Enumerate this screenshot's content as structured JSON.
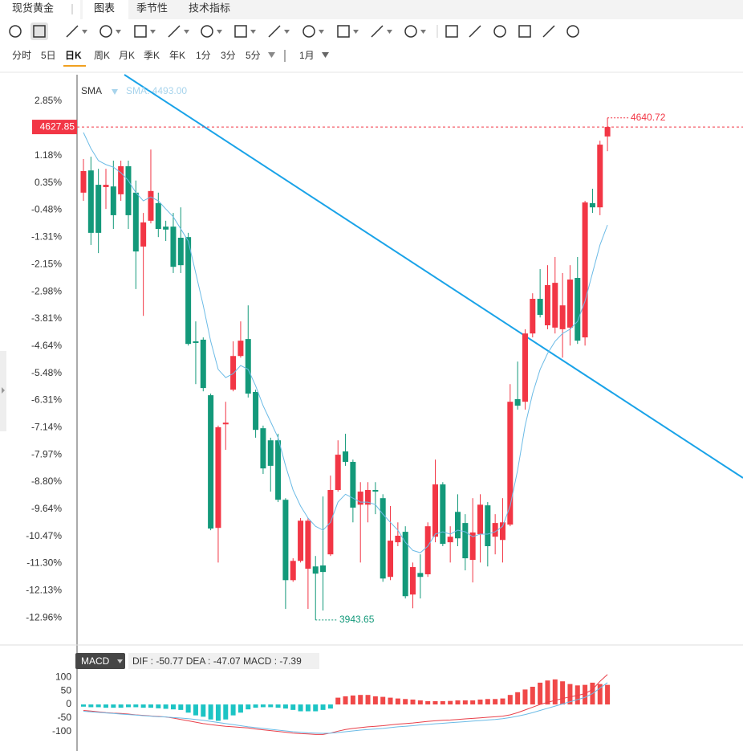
{
  "tabs": [
    "现货黄金",
    "图表",
    "季节性",
    "技术指标"
  ],
  "periods": [
    "分时",
    "5日",
    "日K",
    "周K",
    "月K",
    "季K",
    "年K",
    "1分",
    "3分",
    "5分",
    "1月"
  ],
  "chart_data": [
    {
      "type": "candlestick",
      "sma_label": "SMA: 4493.00",
      "ylim": [
        -13.72,
        3.66
      ],
      "yticks": [
        {
          "value": 2.85,
          "label": "2.85%"
        },
        {
          "value": 1.18,
          "label": "1.18%"
        },
        {
          "value": 0.35,
          "label": "0.35%"
        },
        {
          "value": -0.48,
          "label": "-0.48%"
        },
        {
          "value": -1.31,
          "label": "-1.31%"
        },
        {
          "value": -2.15,
          "label": "-2.15%"
        },
        {
          "value": -2.98,
          "label": "-2.98%"
        },
        {
          "value": -3.81,
          "label": "-3.81%"
        },
        {
          "value": -4.64,
          "label": "-4.64%"
        },
        {
          "value": -5.48,
          "label": "-5.48%"
        },
        {
          "value": -6.31,
          "label": "-6.31%"
        },
        {
          "value": -7.14,
          "label": "-7.14%"
        },
        {
          "value": -7.97,
          "label": "-7.97%"
        },
        {
          "value": -8.8,
          "label": "-8.80%"
        },
        {
          "value": -9.64,
          "label": "-9.64%"
        },
        {
          "value": -10.47,
          "label": "-10.47%"
        },
        {
          "value": -11.3,
          "label": "-11.30%"
        },
        {
          "value": -12.13,
          "label": "-12.13%"
        },
        {
          "value": -12.96,
          "label": "-12.96%"
        }
      ],
      "price_marker": {
        "value": 2.06,
        "label": "4627.85"
      },
      "high_label": "4640.72",
      "low_label": "3943.65",
      "up_color": "#f23645",
      "down_color": "#13997a",
      "open": [
        0.05,
        0.73,
        0.29,
        0.22,
        0.24,
        0.0,
        0.86,
        0.05,
        -1.6,
        -0.81,
        -0.27,
        -0.99,
        -0.99,
        -1.33,
        -1.31,
        -4.5,
        -4.45,
        -6.15,
        -10.21,
        -7.04,
        -5.98,
        -4.95,
        -4.43,
        -6.05,
        -7.16,
        -7.53,
        -7.53,
        -9.35,
        -11.81,
        -11.22,
        -11.46,
        -11.39,
        -11.36,
        -11.02,
        -9.05,
        -7.87,
        -8.19,
        -9.5,
        -9.5,
        -9.05,
        -9.3,
        -11.71,
        -10.65,
        -10.33,
        -12.25,
        -11.59,
        -11.63,
        -10.48,
        -8.88,
        -10.65,
        -9.72,
        -10.06,
        -11.19,
        -10.4,
        -9.52,
        -10.48,
        -10.58,
        -10.11,
        -6.27,
        -6.35,
        -4.26,
        -3.2,
        -4.01,
        -4.08,
        -4.13,
        -4.08,
        -2.56,
        -4.38,
        -0.27,
        -0.4,
        1.77
      ],
      "high": [
        1.08,
        1.15,
        0.78,
        0.78,
        1.03,
        1.03,
        1.03,
        0.42,
        -0.57,
        1.37,
        0.05,
        -0.81,
        -0.57,
        -0.4,
        -1.18,
        -3.89,
        -4.38,
        -6.1,
        -7.08,
        -6.35,
        -4.5,
        -3.89,
        -3.4,
        -5.98,
        -7.08,
        -7.45,
        -7.33,
        -9.3,
        -11.14,
        -9.91,
        -9.91,
        -11.07,
        -9.25,
        -8.61,
        -7.53,
        -7.33,
        -8.12,
        -8.81,
        -8.81,
        -8.81,
        -9.18,
        -9.54,
        -10.04,
        -10.16,
        -11.27,
        -11.02,
        -10.04,
        -8.12,
        -8.81,
        -10.16,
        -9.18,
        -9.79,
        -9.3,
        -9.18,
        -9.42,
        -9.79,
        -9.3,
        -5.81,
        -5.12,
        -4.13,
        -3.03,
        -2.29,
        -2.17,
        -1.92,
        -2.41,
        -2.17,
        -1.92,
        -0.2,
        0.17,
        1.64,
        2.34
      ],
      "low": [
        -0.2,
        -1.55,
        -1.8,
        -0.45,
        -1.06,
        -0.2,
        -1.06,
        -2.9,
        -3.72,
        -0.89,
        -1.31,
        -1.43,
        -2.41,
        -2.41,
        -4.63,
        -5.81,
        -6.03,
        -10.28,
        -11.27,
        -7.82,
        -6.03,
        -5.0,
        -6.22,
        -7.45,
        -8.56,
        -9.1,
        -9.42,
        -12.69,
        -11.86,
        -11.27,
        -12.69,
        -13.03,
        -12.74,
        -11.07,
        -9.1,
        -8.31,
        -10.04,
        -11.27,
        -10.04,
        -9.79,
        -11.86,
        -11.81,
        -10.77,
        -12.37,
        -12.67,
        -12.37,
        -11.71,
        -10.65,
        -10.77,
        -11.27,
        -10.77,
        -11.51,
        -11.88,
        -11.27,
        -11.39,
        -11.02,
        -11.27,
        -10.16,
        -6.59,
        -6.59,
        -4.38,
        -3.77,
        -4.13,
        -4.26,
        -5.0,
        -4.63,
        -4.58,
        -4.63,
        -0.57,
        -0.64,
        1.32
      ],
      "close": [
        0.71,
        -1.18,
        -1.18,
        0.29,
        -0.64,
        0.86,
        -0.64,
        -1.75,
        -0.86,
        0.1,
        -1.06,
        -1.08,
        -2.22,
        -2.17,
        -4.58,
        -4.55,
        -5.93,
        -10.23,
        -7.13,
        -6.99,
        -4.95,
        -4.48,
        -6.1,
        -7.21,
        -8.39,
        -8.31,
        -9.35,
        -11.81,
        -11.22,
        -9.99,
        -9.99,
        -11.61,
        -11.56,
        -9.05,
        -7.97,
        -8.19,
        -9.59,
        -9.1,
        -9.05,
        -9.1,
        -11.76,
        -10.6,
        -10.45,
        -12.3,
        -11.41,
        -11.71,
        -10.16,
        -8.88,
        -10.7,
        -10.48,
        -10.53,
        -11.14,
        -10.35,
        -9.5,
        -10.77,
        -10.06,
        -10.04,
        -6.35,
        -6.47,
        -4.26,
        -3.2,
        -3.69,
        -2.78,
        -2.71,
        -3.4,
        -2.61,
        -4.48,
        -0.25,
        -0.4,
        1.52,
        2.06
      ],
      "series": [
        {
          "name": "SMA",
          "color": "#6cbbe6",
          "values": [
            1.89,
            1.4,
            1.03,
            0.91,
            0.83,
            0.66,
            0.42,
            0.05,
            -0.2,
            -0.08,
            -0.2,
            -0.45,
            -0.69,
            -1.06,
            -1.43,
            -2.41,
            -3.4,
            -4.5,
            -5.36,
            -5.61,
            -5.49,
            -5.24,
            -5.36,
            -5.86,
            -6.47,
            -6.96,
            -7.45,
            -8.31,
            -9.05,
            -9.54,
            -9.91,
            -10.16,
            -10.28,
            -10.04,
            -9.42,
            -9.18,
            -9.3,
            -9.42,
            -9.42,
            -9.5,
            -9.79,
            -10.04,
            -10.28,
            -10.65,
            -10.9,
            -10.97,
            -10.77,
            -10.4,
            -10.33,
            -10.4,
            -10.28,
            -10.33,
            -10.48,
            -10.4,
            -10.4,
            -10.33,
            -10.16,
            -9.54,
            -8.44,
            -7.08,
            -6.1,
            -5.36,
            -4.87,
            -4.5,
            -4.26,
            -4.13,
            -3.89,
            -3.27,
            -2.41,
            -1.55,
            -0.94
          ]
        }
      ]
    },
    {
      "type": "macd",
      "legend": "MACD",
      "readout": "DIF : -50.77  DEA : -47.07  MACD : -7.39",
      "ylim": [
        -156,
        124
      ],
      "yticks": [
        100,
        50,
        0,
        -50,
        -100
      ],
      "pos_color": "#f04848",
      "neg_color": "#1cc4c4",
      "histogram": [
        -8,
        -10,
        -10,
        -12,
        -12,
        -12,
        -10,
        -10,
        -12,
        -12,
        -14,
        -16,
        -18,
        -20,
        -30,
        -40,
        -45,
        -55,
        -60,
        -55,
        -40,
        -30,
        -18,
        -12,
        -10,
        -10,
        -12,
        -15,
        -20,
        -25,
        -25,
        -25,
        -20,
        -15,
        25,
        30,
        33,
        35,
        35,
        30,
        28,
        25,
        22,
        20,
        18,
        15,
        12,
        12,
        12,
        13,
        15,
        15,
        15,
        18,
        20,
        20,
        22,
        35,
        45,
        55,
        65,
        80,
        88,
        92,
        85,
        75,
        70,
        72,
        80,
        75,
        72
      ],
      "series": [
        {
          "color": "#e8404a",
          "values": [
            -22,
            -24,
            -27,
            -30,
            -32,
            -33,
            -35,
            -38,
            -40,
            -42,
            -44,
            -46,
            -50,
            -55,
            -60,
            -65,
            -70,
            -74,
            -77,
            -80,
            -82,
            -84,
            -86,
            -90,
            -93,
            -96,
            -99,
            -102,
            -105,
            -107,
            -108,
            -110,
            -110,
            -105,
            -98,
            -92,
            -88,
            -85,
            -82,
            -80,
            -78,
            -75,
            -72,
            -70,
            -68,
            -65,
            -62,
            -60,
            -58,
            -57,
            -55,
            -53,
            -51,
            -49,
            -47,
            -45,
            -43,
            -38,
            -30,
            -20,
            -10,
            0,
            8,
            15,
            22,
            28,
            33,
            40,
            55,
            85,
            110
          ]
        },
        {
          "color": "#6cbbe6",
          "values": [
            -25,
            -27,
            -29,
            -31,
            -33,
            -35,
            -37,
            -39,
            -41,
            -43,
            -45,
            -46,
            -48,
            -50,
            -52,
            -55,
            -58,
            -62,
            -66,
            -70,
            -74,
            -78,
            -82,
            -85,
            -88,
            -91,
            -94,
            -97,
            -100,
            -102,
            -104,
            -105,
            -106,
            -105,
            -103,
            -100,
            -97,
            -94,
            -92,
            -90,
            -88,
            -85,
            -82,
            -80,
            -78,
            -75,
            -73,
            -71,
            -69,
            -67,
            -65,
            -63,
            -61,
            -59,
            -57,
            -55,
            -52,
            -48,
            -43,
            -37,
            -30,
            -22,
            -14,
            -6,
            2,
            10,
            18,
            26,
            40,
            60,
            80
          ]
        }
      ]
    }
  ]
}
